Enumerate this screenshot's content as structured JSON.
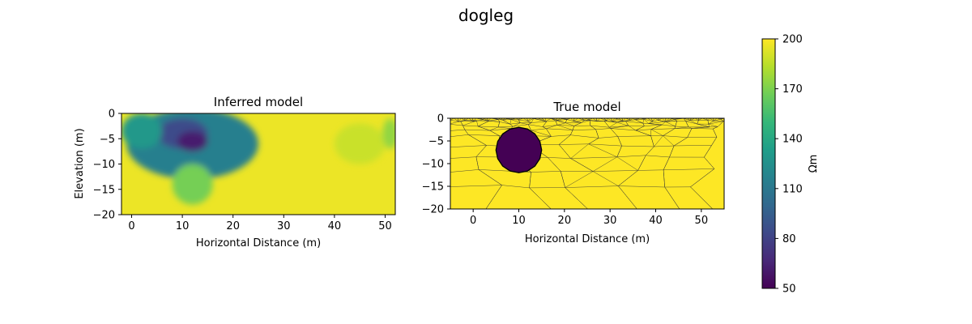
{
  "suptitle": "dogleg",
  "colorbar": {
    "label": "Ωm",
    "min": 50,
    "max": 200,
    "ticks": [
      50,
      80,
      110,
      140,
      170,
      200
    ],
    "colormap": "viridis",
    "colors": [
      "#440154",
      "#482878",
      "#3e4989",
      "#31688e",
      "#26828e",
      "#1f9e89",
      "#35b779",
      "#6ece58",
      "#b5de2b",
      "#fde725"
    ]
  },
  "chart_data": [
    {
      "type": "heatmap",
      "title": "Inferred model",
      "xlabel": "Horizontal Distance (m)",
      "ylabel": "Elevation (m)",
      "xlim": [
        -2,
        52
      ],
      "ylim": [
        -20,
        0
      ],
      "xticks": [
        0,
        10,
        20,
        30,
        40,
        50
      ],
      "yticks": [
        0,
        -5,
        -10,
        -15,
        -20
      ],
      "background_value": 196,
      "anomalies": [
        {
          "x": 12,
          "y": -6,
          "rx": 13,
          "ry": 7,
          "value": 115
        },
        {
          "x": 10,
          "y": -4,
          "rx": 5,
          "ry": 3,
          "value": 85
        },
        {
          "x": 12,
          "y": -5.5,
          "rx": 3,
          "ry": 2,
          "value": 62
        },
        {
          "x": 2,
          "y": -3.5,
          "rx": 4,
          "ry": 3.5,
          "value": 130
        },
        {
          "x": 12,
          "y": -14,
          "rx": 4,
          "ry": 4,
          "value": 168
        },
        {
          "x": 45,
          "y": -6,
          "rx": 5,
          "ry": 4,
          "value": 188
        },
        {
          "x": 51,
          "y": -4,
          "rx": 1.5,
          "ry": 3,
          "value": 175
        }
      ]
    },
    {
      "type": "heatmap",
      "title": "True model",
      "xlabel": "Horizontal Distance (m)",
      "ylabel": "",
      "xlim": [
        -5,
        55
      ],
      "ylim": [
        -20,
        0
      ],
      "xticks": [
        0,
        10,
        20,
        30,
        40,
        50
      ],
      "yticks": [
        0,
        -5,
        -10,
        -15,
        -20
      ],
      "background_value": 200,
      "mesh": true,
      "anomaly": {
        "shape": "circle",
        "x": 10,
        "y": -7,
        "radius": 5,
        "value": 50
      }
    }
  ]
}
